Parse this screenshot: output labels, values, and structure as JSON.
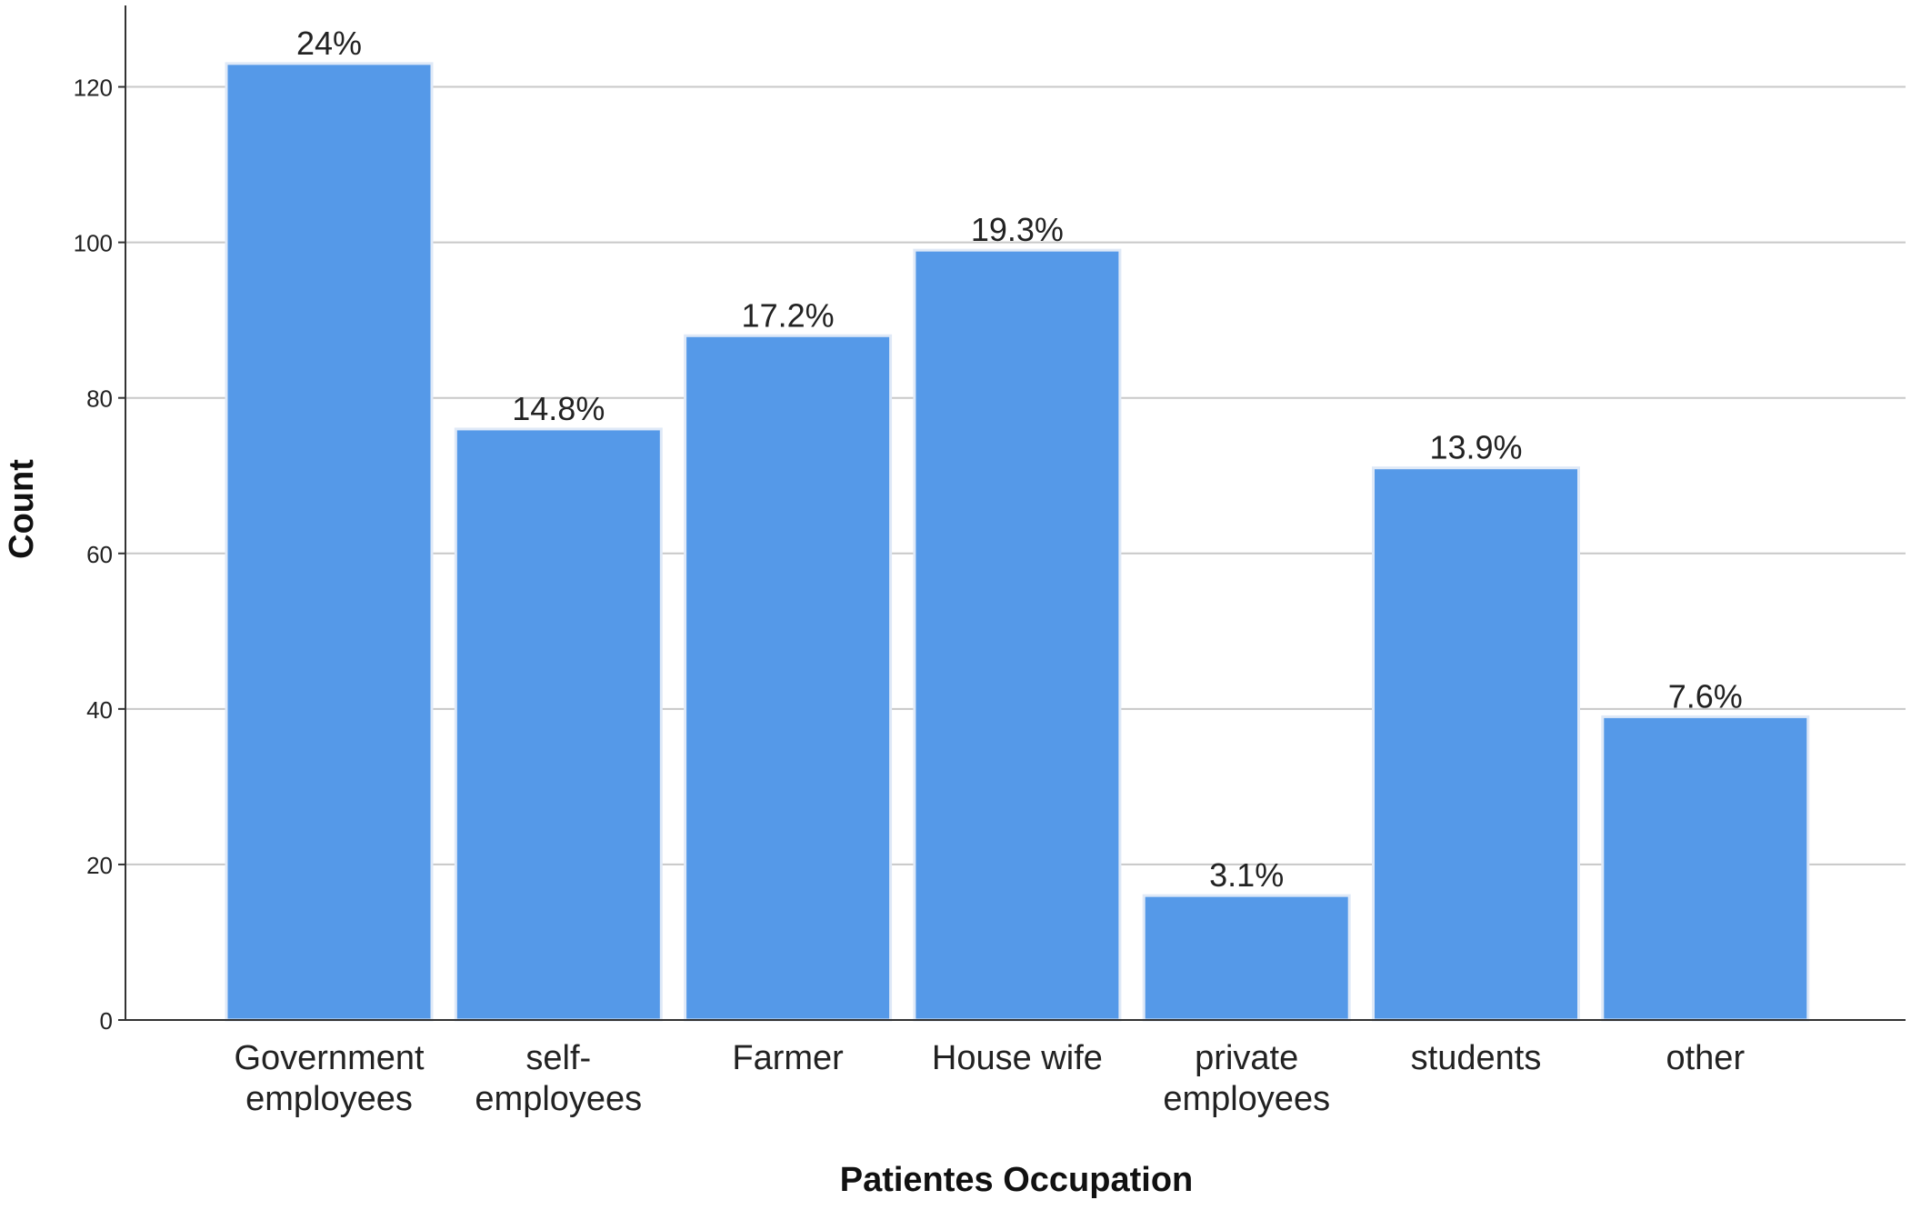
{
  "chart_data": {
    "type": "bar",
    "title": "",
    "xlabel": "Patientes Occupation",
    "ylabel": "Count",
    "ylim": [
      0,
      130
    ],
    "yticks": [
      0,
      20,
      40,
      60,
      80,
      100,
      120
    ],
    "grid": "horizontal",
    "categories": [
      [
        "Government",
        "employees"
      ],
      [
        "self-",
        "employees"
      ],
      [
        "Farmer"
      ],
      [
        "House wife"
      ],
      [
        "private",
        "employees"
      ],
      [
        "students"
      ],
      [
        "other"
      ]
    ],
    "values": [
      123,
      76,
      88,
      99,
      16,
      71,
      39
    ],
    "data_labels": [
      "24%",
      "14.8%",
      "17.2%",
      "19.3%",
      "3.1%",
      "13.9%",
      "7.6%"
    ],
    "colors": {
      "bar": "#5599e8",
      "bar_edge": "#dfe9f7",
      "grid": "#c8c8c8",
      "axis": "#333333",
      "text": "#222222"
    }
  }
}
